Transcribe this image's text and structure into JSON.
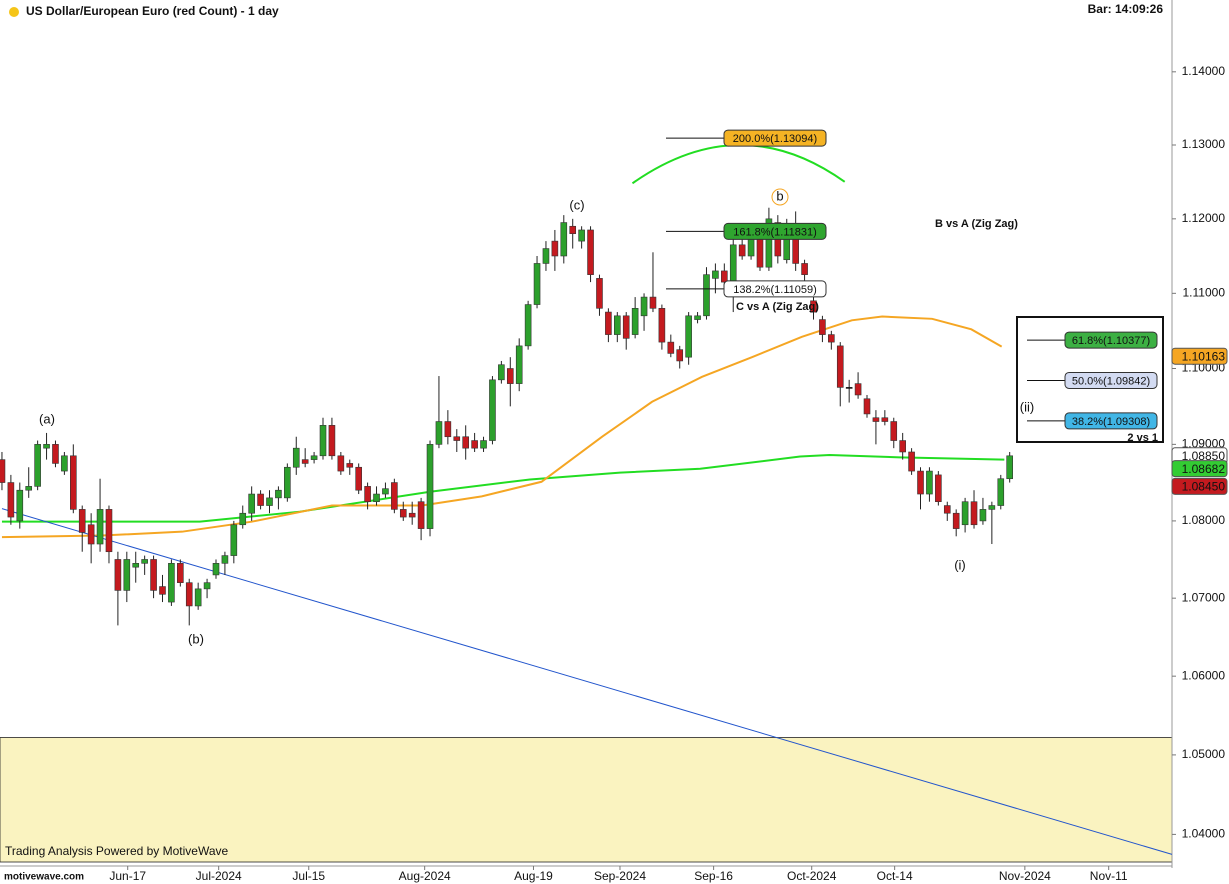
{
  "chart_data": {
    "type": "candlestick",
    "title": "US Dollar/European Euro (red Count) - 1 day",
    "bar_time": "Bar: 14:09:26",
    "footer": "Trading Analysis Powered by MotiveWave",
    "logo": "motivewave.com",
    "log_scale": true,
    "up_color": "#2ca02c",
    "down_color": "#c41a1f",
    "open": [
      1.088,
      1.085,
      1.08,
      1.084,
      1.0845,
      1.0895,
      1.09,
      1.0865,
      1.0885,
      1.0815,
      1.0795,
      1.077,
      1.0815,
      1.075,
      1.071,
      1.074,
      1.0745,
      1.075,
      1.0715,
      1.0695,
      1.0745,
      1.072,
      1.069,
      1.0712,
      1.073,
      1.0745,
      1.0755,
      1.0795,
      1.081,
      1.0835,
      1.082,
      1.083,
      1.083,
      1.087,
      1.088,
      1.088,
      1.0885,
      1.0925,
      1.0885,
      1.0875,
      1.087,
      1.0845,
      1.0825,
      1.0835,
      1.085,
      1.0815,
      1.081,
      1.0825,
      1.079,
      1.09,
      1.093,
      1.091,
      1.091,
      1.0905,
      1.0895,
      1.0905,
      1.0985,
      1.1,
      1.098,
      1.103,
      1.1085,
      1.114,
      1.117,
      1.115,
      1.119,
      1.117,
      1.1185,
      1.112,
      1.1075,
      1.1045,
      1.107,
      1.1045,
      1.107,
      1.1095,
      1.108,
      1.1035,
      1.1025,
      1.1015,
      1.1065,
      1.107,
      1.112,
      1.113,
      1.1115,
      1.1165,
      1.115,
      1.1175,
      1.1135,
      1.1195,
      1.1145,
      1.1185,
      1.114,
      1.109,
      1.1065,
      1.1045,
      1.103,
      1.0975,
      1.098,
      1.096,
      1.0935,
      1.0935,
      1.093,
      1.0905,
      1.089,
      1.0865,
      1.0835,
      1.086,
      1.082,
      1.081,
      1.0795,
      1.0825,
      1.08,
      1.0815,
      1.082,
      1.0855
    ],
    "high": [
      1.089,
      1.086,
      1.085,
      1.087,
      1.0905,
      1.0915,
      1.0905,
      1.089,
      1.09,
      1.082,
      1.081,
      1.0855,
      1.082,
      1.076,
      1.076,
      1.076,
      1.0755,
      1.0755,
      1.073,
      1.075,
      1.075,
      1.0725,
      1.072,
      1.0725,
      1.075,
      1.076,
      1.08,
      1.082,
      1.0845,
      1.084,
      1.084,
      1.0845,
      1.0875,
      1.091,
      1.0895,
      1.089,
      1.0935,
      1.0935,
      1.089,
      1.088,
      1.0875,
      1.085,
      1.0845,
      1.085,
      1.0855,
      1.0825,
      1.0825,
      1.083,
      1.0905,
      1.099,
      1.0945,
      1.092,
      1.0925,
      1.0915,
      1.091,
      1.099,
      1.101,
      1.1015,
      1.104,
      1.109,
      1.115,
      1.117,
      1.1185,
      1.1205,
      1.12,
      1.119,
      1.119,
      1.1125,
      1.108,
      1.1075,
      1.1075,
      1.1095,
      1.11,
      1.1155,
      1.1085,
      1.1045,
      1.103,
      1.1075,
      1.1075,
      1.1135,
      1.114,
      1.114,
      1.118,
      1.1175,
      1.1185,
      1.1185,
      1.1215,
      1.1205,
      1.12,
      1.121,
      1.1145,
      1.11,
      1.107,
      1.105,
      1.1035,
      1.0985,
      1.0995,
      1.0965,
      1.0945,
      1.0945,
      1.0935,
      1.0915,
      1.0895,
      1.087,
      1.087,
      1.0865,
      1.0825,
      1.0815,
      1.083,
      1.084,
      1.083,
      1.0825,
      1.086,
      1.089
    ],
    "low": [
      1.084,
      1.0795,
      1.079,
      1.083,
      1.084,
      1.088,
      1.087,
      1.086,
      1.081,
      1.076,
      1.0745,
      1.076,
      1.0745,
      1.0665,
      1.0695,
      1.072,
      1.073,
      1.07,
      1.0695,
      1.069,
      1.0715,
      1.0665,
      1.0685,
      1.07,
      1.0725,
      1.073,
      1.0745,
      1.079,
      1.08,
      1.0815,
      1.081,
      1.0815,
      1.0825,
      1.086,
      1.087,
      1.0875,
      1.088,
      1.088,
      1.086,
      1.086,
      1.0835,
      1.0815,
      1.082,
      1.083,
      1.081,
      1.08,
      1.0795,
      1.0775,
      1.078,
      1.0895,
      1.09,
      1.089,
      1.088,
      1.089,
      1.089,
      1.09,
      1.098,
      1.095,
      1.097,
      1.1025,
      1.108,
      1.113,
      1.113,
      1.114,
      1.116,
      1.116,
      1.1115,
      1.107,
      1.1035,
      1.1035,
      1.1025,
      1.104,
      1.105,
      1.1075,
      1.1025,
      1.1015,
      1.1,
      1.1005,
      1.106,
      1.1065,
      1.11,
      1.1105,
      1.1075,
      1.1145,
      1.1145,
      1.113,
      1.113,
      1.114,
      1.114,
      1.113,
      1.111,
      1.1065,
      1.1035,
      1.1025,
      1.095,
      1.0955,
      1.096,
      1.0935,
      1.09,
      1.0925,
      1.0895,
      1.088,
      1.086,
      1.0815,
      1.0825,
      1.082,
      1.08,
      1.078,
      1.0785,
      1.079,
      1.0795,
      1.077,
      1.0815,
      1.085
    ],
    "close": [
      1.085,
      1.0805,
      1.084,
      1.0845,
      1.09,
      1.09,
      1.0875,
      1.0885,
      1.0815,
      1.0785,
      1.077,
      1.0815,
      1.076,
      1.071,
      1.075,
      1.0745,
      1.075,
      1.071,
      1.0705,
      1.0745,
      1.072,
      1.069,
      1.0712,
      1.072,
      1.0745,
      1.0755,
      1.0795,
      1.081,
      1.0835,
      1.082,
      1.083,
      1.084,
      1.087,
      1.0895,
      1.0875,
      1.0885,
      1.0925,
      1.0885,
      1.0865,
      1.087,
      1.084,
      1.0825,
      1.0835,
      1.0842,
      1.0815,
      1.0805,
      1.0805,
      1.079,
      1.09,
      1.093,
      1.091,
      1.0905,
      1.0895,
      1.0895,
      1.0905,
      1.0985,
      1.1005,
      1.098,
      1.103,
      1.1085,
      1.114,
      1.116,
      1.115,
      1.1195,
      1.118,
      1.1185,
      1.1125,
      1.108,
      1.1045,
      1.107,
      1.104,
      1.108,
      1.1095,
      1.108,
      1.1035,
      1.102,
      1.101,
      1.107,
      1.107,
      1.1125,
      1.113,
      1.1115,
      1.1165,
      1.115,
      1.1175,
      1.1135,
      1.12,
      1.115,
      1.1185,
      1.114,
      1.1125,
      1.1075,
      1.1045,
      1.1035,
      1.0975,
      1.0975,
      1.0965,
      1.094,
      1.093,
      1.093,
      1.0905,
      1.089,
      1.0865,
      1.0835,
      1.0865,
      1.0825,
      1.081,
      1.079,
      1.0825,
      1.0795,
      1.0815,
      1.082,
      1.0855,
      1.0885
    ],
    "xlim": [
      -0.22,
      131.2
    ],
    "xticks": [
      {
        "value": 14.1,
        "label": "Jun-17"
      },
      {
        "value": 24.3,
        "label": "Jul-2024"
      },
      {
        "value": 34.4,
        "label": "Jul-15"
      },
      {
        "value": 47.4,
        "label": "Aug-2024"
      },
      {
        "value": 59.6,
        "label": "Aug-19"
      },
      {
        "value": 69.3,
        "label": "Sep-2024"
      },
      {
        "value": 79.8,
        "label": "Sep-16"
      },
      {
        "value": 90.8,
        "label": "Oct-2024"
      },
      {
        "value": 100.1,
        "label": "Oct-14"
      },
      {
        "value": 114.7,
        "label": "Nov-2024"
      },
      {
        "value": 124.1,
        "label": "Nov-11"
      }
    ],
    "ylim": [
      1.0358,
      1.1499
    ],
    "yticks": [
      {
        "value": 1.04,
        "label": "1.04000"
      },
      {
        "value": 1.05,
        "label": "1.05000"
      },
      {
        "value": 1.06,
        "label": "1.06000"
      },
      {
        "value": 1.07,
        "label": "1.07000"
      },
      {
        "value": 1.08,
        "label": "1.08000"
      },
      {
        "value": 1.09,
        "label": "1.09000"
      },
      {
        "value": 1.1,
        "label": "1.10000"
      },
      {
        "value": 1.11,
        "label": "1.11000"
      },
      {
        "value": 1.12,
        "label": "1.12000"
      },
      {
        "value": 1.13,
        "label": "1.13000"
      },
      {
        "value": 1.14,
        "label": "1.14000"
      }
    ],
    "zone_top": 1.0522,
    "zone_color": "#faf3c0",
    "overlays": [
      {
        "color": "#22dd22",
        "x": [
          0,
          22.2,
          33.4,
          48,
          59.2,
          69.3,
          78.3,
          89.5,
          92.8,
          100.7,
          112.4
        ],
        "values": [
          1.0799,
          1.0799,
          1.0812,
          1.0838,
          1.0854,
          1.0863,
          1.0868,
          1.0884,
          1.0886,
          1.0883,
          1.088
        ]
      },
      {
        "color": "#f5a623",
        "x": [
          0,
          11.2,
          20.2,
          28,
          37,
          47.1,
          53.8,
          60.5,
          67.3,
          72.9,
          78.5,
          84.1,
          89.7,
          95.3,
          98.7,
          104.3,
          108.7,
          112.1
        ],
        "values": [
          1.0779,
          1.0781,
          1.0786,
          1.0799,
          1.082,
          1.082,
          1.0832,
          1.0851,
          1.091,
          1.0956,
          1.0989,
          1.1015,
          1.1042,
          1.1064,
          1.1069,
          1.1066,
          1.1052,
          1.1029
        ]
      },
      {
        "color": "#2255cc",
        "x": [
          0,
          131.2
        ],
        "values": [
          1.0816,
          1.0375
        ]
      },
      {
        "color": "#22dd22",
        "x": [
          70.7,
          82.7,
          94.5
        ],
        "values": [
          1.1248,
          1.13,
          1.125
        ],
        "curve": true
      }
    ],
    "fib_levels": [
      {
        "value": 1.13094,
        "label": "200.0%(1.13094)",
        "color": "#f5b324"
      },
      {
        "value": 1.11831,
        "label": "161.8%(1.11831)",
        "color": "#2fa52f"
      },
      {
        "value": 1.11059,
        "label": "138.2%(1.11059)",
        "color": "#ffffff"
      }
    ],
    "box_fibs": [
      {
        "value": 1.10377,
        "label": "61.8%(1.10377)",
        "color": "#3cb043"
      },
      {
        "value": 1.09842,
        "label": "50.0%(1.09842)",
        "color": "#d3dbf2"
      },
      {
        "value": 1.09308,
        "label": "38.2%(1.09308)",
        "color": "#41b6e6"
      }
    ],
    "box_label": "2 vs 1",
    "notes": [
      "C vs A (Zig Zag)",
      "B vs A (Zig Zag)"
    ],
    "waves": [
      {
        "label": "(a)",
        "color": "#d62728"
      },
      {
        "label": "(b)",
        "color": "#d62728"
      },
      {
        "label": "(c)",
        "color": "#d62728"
      },
      {
        "label": "b",
        "color": "#f5a623"
      },
      {
        "label": "(i)",
        "color": "#d62728"
      },
      {
        "label": "(ii)",
        "color": "#d62728"
      }
    ],
    "price_tags": [
      {
        "value": 1.10163,
        "label": "1.10163",
        "color": "#f5a623"
      },
      {
        "value": 1.0885,
        "label": "1.08850",
        "color": "#ffffff"
      },
      {
        "value": 1.08682,
        "label": "1.08682",
        "color": "#33cc33"
      },
      {
        "value": 1.0845,
        "label": "1.08450",
        "color": "#c41a1f"
      }
    ]
  }
}
